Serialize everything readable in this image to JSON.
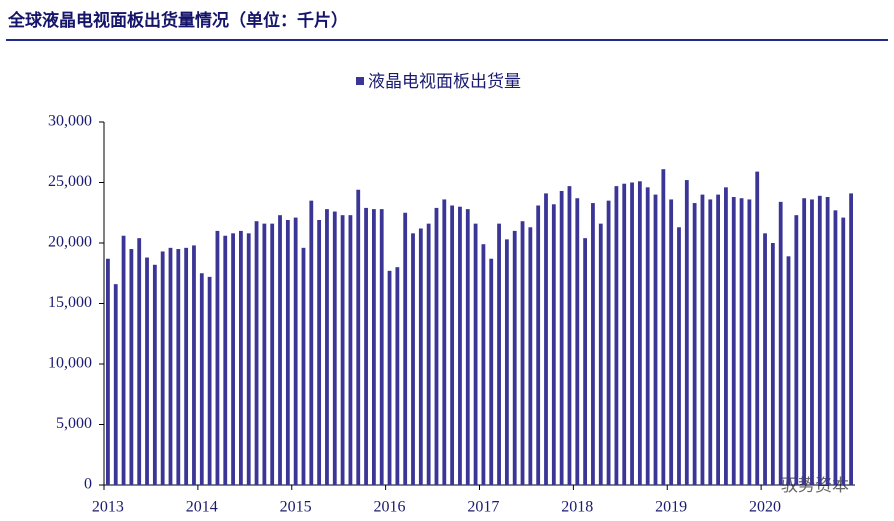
{
  "title": "全球液晶电视面板出货量情况（单位：千片）",
  "watermark": "驭势资本",
  "chart_data": {
    "type": "bar",
    "categories": [
      "2013",
      null,
      null,
      null,
      null,
      null,
      null,
      null,
      null,
      null,
      null,
      null,
      "2014",
      null,
      null,
      null,
      null,
      null,
      null,
      null,
      null,
      null,
      null,
      null,
      "2015",
      null,
      null,
      null,
      null,
      null,
      null,
      null,
      null,
      null,
      null,
      null,
      "2016",
      null,
      null,
      null,
      null,
      null,
      null,
      null,
      null,
      null,
      null,
      null,
      "2017",
      null,
      null,
      null,
      null,
      null,
      null,
      null,
      null,
      null,
      null,
      null,
      "2018",
      null,
      null,
      null,
      null,
      null,
      null,
      null,
      null,
      null,
      null,
      null,
      "2019",
      null,
      null,
      null,
      null,
      null,
      null,
      null,
      null,
      null,
      null,
      null,
      "2020",
      null,
      null,
      null,
      null,
      null,
      null,
      null,
      null,
      null,
      null,
      null
    ],
    "series": [
      {
        "name": "液晶电视面板出货量",
        "color": "#3b3596",
        "values": [
          18700,
          16600,
          20600,
          19500,
          20400,
          18800,
          18200,
          19300,
          19600,
          19500,
          19600,
          19800,
          17500,
          17200,
          21000,
          20600,
          20800,
          21000,
          20800,
          21800,
          21600,
          21600,
          22300,
          21900,
          22100,
          19600,
          23500,
          21900,
          22800,
          22600,
          22300,
          22300,
          24400,
          22900,
          22800,
          22800,
          17700,
          18000,
          22500,
          20800,
          21200,
          21600,
          22900,
          23600,
          23100,
          23000,
          22800,
          21600,
          19900,
          18700,
          21600,
          20300,
          21000,
          21800,
          21300,
          23100,
          24100,
          23200,
          24300,
          24700,
          23700,
          20400,
          23300,
          21600,
          23500,
          24700,
          24900,
          25000,
          25100,
          24600,
          24000,
          26100,
          23600,
          21300,
          25200,
          23300,
          24000,
          23600,
          24000,
          24600,
          23800,
          23700,
          23600,
          25900,
          20800,
          20000,
          23400,
          18900,
          22300,
          23700,
          23600,
          23900,
          23800,
          22700,
          22100,
          24100
        ]
      }
    ],
    "ylim": [
      0,
      30000
    ],
    "yticks": [
      0,
      {
        "value": 5000,
        "label": "5,000"
      },
      {
        "value": 10000,
        "label": "10,000"
      },
      {
        "value": 15000,
        "label": "15,000"
      },
      {
        "value": 20000,
        "label": "20,000"
      },
      {
        "value": 25000,
        "label": "25,000"
      },
      {
        "value": 30000,
        "label": "30,000"
      }
    ],
    "legend": "top"
  }
}
